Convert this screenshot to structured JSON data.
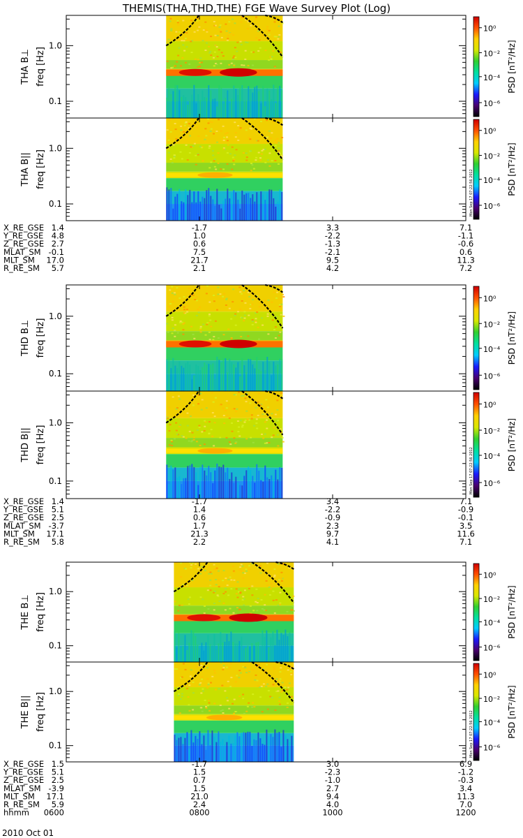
{
  "title": "THEMIS(THA,THD,THE) FGE Wave Survey Plot (Log)",
  "date_label": "2010 Oct 01",
  "stamp": "Mon Sep 17 07:22:56 2012",
  "colorbar": {
    "label": "PSD [nT²/Hz]",
    "ticks": [
      "10⁰",
      "10⁻²",
      "10⁻⁴",
      "10⁻⁶"
    ],
    "stops": [
      "#000000",
      "#4a0070",
      "#1a1aff",
      "#00ccff",
      "#00e0a0",
      "#30d030",
      "#d8e800",
      "#ffd000",
      "#ff5000",
      "#d00000"
    ]
  },
  "chart_data": [
    {
      "type": "heatmap",
      "panel": "tha-bperp",
      "ylabel": "THA B⊥",
      "unit": "freq [Hz]",
      "yticks": [
        "1.0",
        "0.1"
      ],
      "ylog": true,
      "ylim": [
        0.05,
        3.5
      ],
      "data_span": [
        "0730",
        "0915"
      ],
      "band_hz": 0.33,
      "band_strength": "strong"
    },
    {
      "type": "heatmap",
      "panel": "tha-bpar",
      "ylabel": "THA B||",
      "unit": "freq [Hz]",
      "yticks": [
        "1.0",
        "0.1"
      ],
      "ylog": true,
      "ylim": [
        0.05,
        3.5
      ],
      "data_span": [
        "0730",
        "0915"
      ],
      "band_hz": 0.33,
      "band_strength": "weak"
    },
    {
      "type": "heatmap",
      "panel": "thd-bperp",
      "ylabel": "THD B⊥",
      "unit": "freq [Hz]",
      "yticks": [
        "1.0",
        "0.1"
      ],
      "ylog": true,
      "ylim": [
        0.05,
        3.5
      ],
      "data_span": [
        "0730",
        "0915"
      ],
      "band_hz": 0.33,
      "band_strength": "strong"
    },
    {
      "type": "heatmap",
      "panel": "thd-bpar",
      "ylabel": "THD B||",
      "unit": "freq [Hz]",
      "yticks": [
        "1.0",
        "0.1"
      ],
      "ylog": true,
      "ylim": [
        0.05,
        3.5
      ],
      "data_span": [
        "0730",
        "0915"
      ],
      "band_hz": 0.33,
      "band_strength": "weak"
    },
    {
      "type": "heatmap",
      "panel": "the-bperp",
      "ylabel": "THE B⊥",
      "unit": "freq [Hz]",
      "yticks": [
        "1.0",
        "0.1"
      ],
      "ylog": true,
      "ylim": [
        0.05,
        3.5
      ],
      "data_span": [
        "0737",
        "0925"
      ],
      "band_hz": 0.33,
      "band_strength": "strong"
    },
    {
      "type": "heatmap",
      "panel": "the-bpar",
      "ylabel": "THE B||",
      "unit": "freq [Hz]",
      "yticks": [
        "1.0",
        "0.1"
      ],
      "ylog": true,
      "ylim": [
        0.05,
        3.5
      ],
      "data_span": [
        "0737",
        "0925"
      ],
      "band_hz": 0.33,
      "band_strength": "weak"
    }
  ],
  "x_axis": {
    "label": "hhmm",
    "ticks": [
      "0600",
      "0800",
      "1000",
      "1200"
    ]
  },
  "ephem": [
    {
      "rows": [
        {
          "name": "X_RE_GSE",
          "vals": [
            "1.4",
            "-1.7",
            "3.3",
            "7.1"
          ]
        },
        {
          "name": "Y_RE_GSE",
          "vals": [
            "4.8",
            "1.0",
            "-2.2",
            "-1.1"
          ]
        },
        {
          "name": "Z_RE_GSE",
          "vals": [
            "2.7",
            "0.6",
            "-1.3",
            "-0.6"
          ]
        },
        {
          "name": "MLAT_SM",
          "vals": [
            "-0.1",
            "7.5",
            "-2.1",
            "0.6"
          ]
        },
        {
          "name": "MLT_SM",
          "vals": [
            "17.0",
            "21.7",
            "9.5",
            "11.3"
          ]
        },
        {
          "name": "R_RE_SM",
          "vals": [
            "5.7",
            "2.1",
            "4.2",
            "7.2"
          ]
        }
      ]
    },
    {
      "rows": [
        {
          "name": "X_RE_GSE",
          "vals": [
            "1.4",
            "-1.7",
            "3.4",
            "7.1"
          ]
        },
        {
          "name": "Y_RE_GSE",
          "vals": [
            "5.1",
            "1.4",
            "-2.2",
            "-0.9"
          ]
        },
        {
          "name": "Z_RE_GSE",
          "vals": [
            "2.5",
            "0.6",
            "-0.9",
            "-0.1"
          ]
        },
        {
          "name": "MLAT_SM",
          "vals": [
            "-3.7",
            "1.7",
            "2.3",
            "3.5"
          ]
        },
        {
          "name": "MLT_SM",
          "vals": [
            "17.1",
            "21.3",
            "9.7",
            "11.6"
          ]
        },
        {
          "name": "R_RE_SM",
          "vals": [
            "5.8",
            "2.2",
            "4.1",
            "7.1"
          ]
        }
      ]
    },
    {
      "rows": [
        {
          "name": "X_RE_GSE",
          "vals": [
            "1.5",
            "-1.7",
            "3.0",
            "6.9"
          ]
        },
        {
          "name": "Y_RE_GSE",
          "vals": [
            "5.1",
            "1.5",
            "-2.3",
            "-1.2"
          ]
        },
        {
          "name": "Z_RE_GSE",
          "vals": [
            "2.5",
            "0.7",
            "-1.0",
            "-0.3"
          ]
        },
        {
          "name": "MLAT_SM",
          "vals": [
            "-3.9",
            "1.5",
            "2.7",
            "3.4"
          ]
        },
        {
          "name": "MLT_SM",
          "vals": [
            "17.1",
            "21.0",
            "9.4",
            "11.3"
          ]
        },
        {
          "name": "R_RE_SM",
          "vals": [
            "5.9",
            "2.4",
            "4.0",
            "7.0"
          ]
        }
      ]
    }
  ]
}
